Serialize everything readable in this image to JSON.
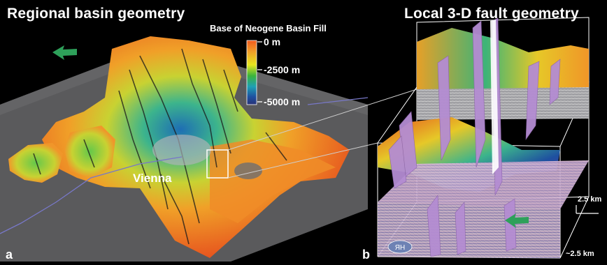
{
  "panel_a": {
    "title": "Regional basin geometry",
    "letter": "a",
    "city": "Vienna",
    "legend": {
      "title": "Base of Neogene Basin Fill",
      "labels": [
        "0 m",
        "-2500 m",
        "-5000 m"
      ],
      "colors": [
        "#f05a1e",
        "#f0a028",
        "#e6e61e",
        "#3cb43c",
        "#1ea0b4",
        "#1e50a0",
        "#283278"
      ]
    }
  },
  "panel_b": {
    "title": "Local 3-D fault geometry",
    "letter": "b",
    "scale_vertical": "2.5 km",
    "scale_horizontal": "~2.5 km",
    "badge": "ЯH"
  },
  "colors": {
    "background": "#000000",
    "fault_planes": "#b48cd2",
    "north_arrow": "#2ea05a"
  }
}
